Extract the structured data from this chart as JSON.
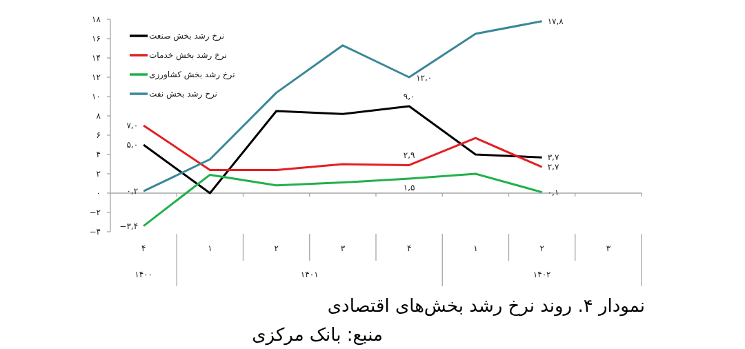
{
  "chart_data": {
    "type": "line",
    "title": "نمودار ۴. روند نرخ رشد بخش‌های اقتصادی",
    "annotations": [
      "۱۴۰۰",
      "۱۴۰۱",
      "۱۴۰۲",
      "منبع: بانک مرکزی"
    ],
    "categories": [
      "۴",
      "۱",
      "۲",
      "۳",
      "۴",
      "۱",
      "۲",
      "۳"
    ],
    "ylim": [
      -4,
      18
    ],
    "yticks": [
      {
        "value": -4,
        "label": "−۴"
      },
      {
        "value": -2,
        "label": "−۲"
      },
      {
        "value": 0,
        "label": "۰"
      },
      {
        "value": 2,
        "label": "۲"
      },
      {
        "value": 4,
        "label": "۴"
      },
      {
        "value": 6,
        "label": "۶"
      },
      {
        "value": 8,
        "label": "۸"
      },
      {
        "value": 10,
        "label": "۱۰"
      },
      {
        "value": 12,
        "label": "۱۲"
      },
      {
        "value": 14,
        "label": "۱۴"
      },
      {
        "value": 16,
        "label": "۱۶"
      },
      {
        "value": 18,
        "label": "۱۸"
      }
    ],
    "ref_lines": [
      {
        "axis": "y",
        "value": 0,
        "color": "#a6a6a6"
      }
    ],
    "grid": false,
    "legend": "top left",
    "series": [
      {
        "name": "نرخ رشد بخش صنعت",
        "color": "#000000",
        "values": [
          5.0,
          0.0,
          8.5,
          8.2,
          9.0,
          4.0,
          3.7,
          null
        ],
        "value_labels": [
          "۵,۰",
          null,
          null,
          null,
          "۹,۰",
          null,
          "۳,۷",
          null
        ]
      },
      {
        "name": "نرخ رشد بخش خدمات",
        "color": "#e31e24",
        "values": [
          7.0,
          2.4,
          2.4,
          3.0,
          2.9,
          5.7,
          2.7,
          null
        ],
        "value_labels": [
          "۷,۰",
          null,
          null,
          null,
          "۲,۹",
          null,
          "۲,۷",
          null
        ]
      },
      {
        "name": "نرخ رشد بخش کشاورزی",
        "color": "#22b04c",
        "values": [
          -3.4,
          1.9,
          0.8,
          1.1,
          1.5,
          2.0,
          0.1,
          null
        ],
        "value_labels": [
          "−۳,۴",
          null,
          null,
          null,
          "۱,۵",
          null,
          "۰,۱",
          null
        ]
      },
      {
        "name": "نرخ رشد بخش نفت",
        "color": "#3a8797",
        "values": [
          0.2,
          3.5,
          10.4,
          15.3,
          12.0,
          16.5,
          17.8,
          null
        ],
        "value_labels": [
          "۰,۲",
          null,
          null,
          null,
          "۱۲,۰",
          null,
          "۱۷,۸",
          null
        ]
      }
    ]
  }
}
